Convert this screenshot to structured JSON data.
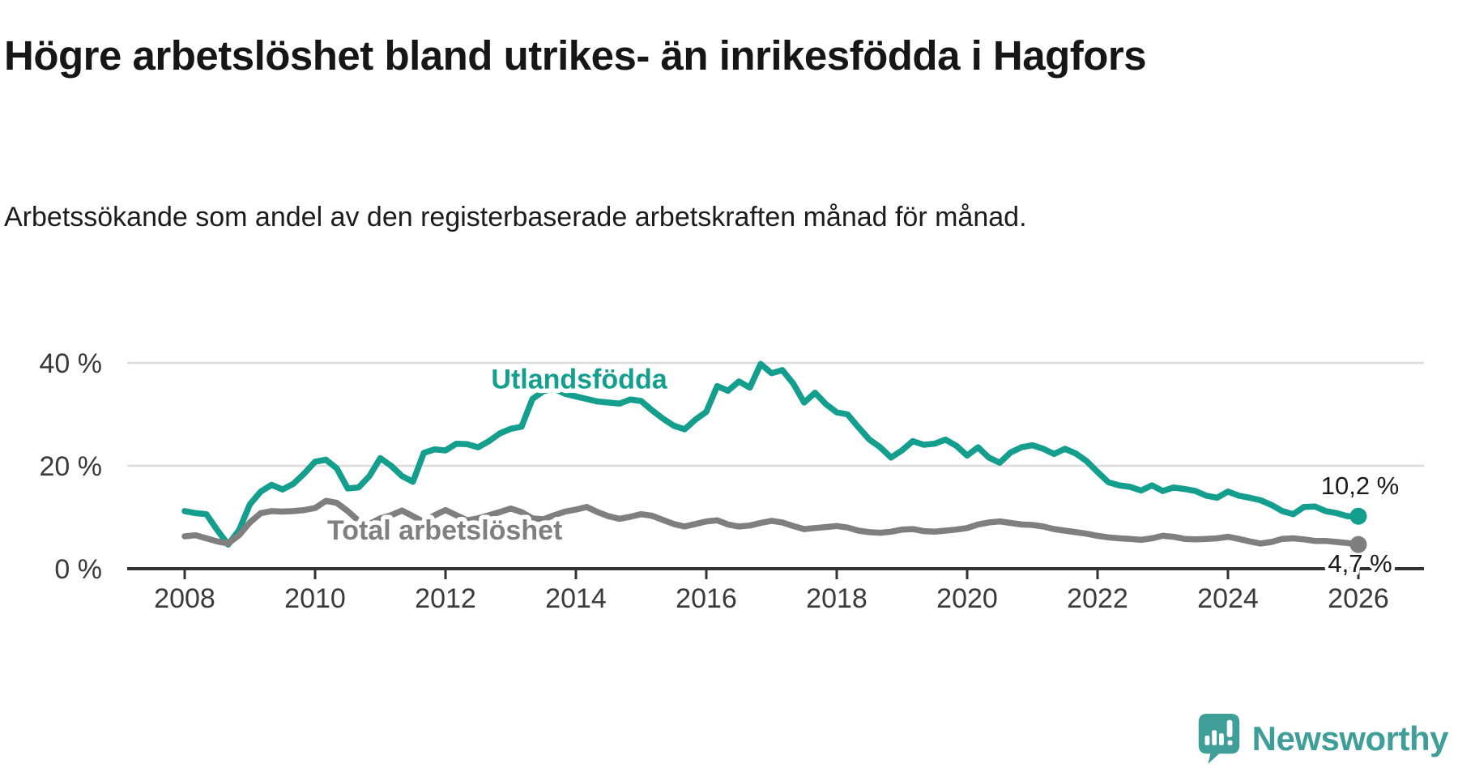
{
  "header": {
    "title": "Högre arbetslöshet bland utrikes- än inrikesfödda i Hagfors",
    "subtitle": "Arbetssökande som andel av den registerbaserade arbetskraften månad för månad."
  },
  "chart_data": {
    "type": "line",
    "title": "Högre arbetslöshet bland utrikes- än inrikesfödda i Hagfors",
    "subtitle": "Arbetssökande som andel av den registerbaserade arbetskraften månad för månad.",
    "unit": "%",
    "x_start": 2008,
    "x_step_years": 0.1666667,
    "xlim": [
      2007.1,
      2027
    ],
    "ylim": [
      0,
      45
    ],
    "grid": "horizontal",
    "legend_position": "inline-labels",
    "x_ticks": [
      2008,
      2010,
      2012,
      2014,
      2016,
      2018,
      2020,
      2022,
      2024,
      2026
    ],
    "y_ticks": [
      {
        "value": 0,
        "label": "0 %"
      },
      {
        "value": 20,
        "label": "20 %"
      },
      {
        "value": 40,
        "label": "40 %"
      }
    ],
    "colors": {
      "grid": "#dcdcdc",
      "axis": "#333333",
      "tick_text": "#3a3a3a",
      "end_label_text": "#1a1a1a"
    },
    "series": [
      {
        "id": "utlandsfodda",
        "name": "Utlandsfödda",
        "color": "#149e8e",
        "label": {
          "text": "Utlandsfödda",
          "x": 2014.05,
          "y": 36.9
        },
        "end_label": {
          "text": "10,2 %",
          "dx": 2,
          "dy": -27
        },
        "end_value": "10,2 %",
        "values": [
          11.2,
          10.8,
          10.6,
          7.5,
          4.7,
          7.5,
          12.5,
          15.0,
          16.3,
          15.4,
          16.5,
          18.5,
          20.8,
          21.2,
          19.5,
          15.6,
          15.8,
          18.0,
          21.5,
          20.0,
          18.0,
          16.9,
          22.5,
          23.2,
          23.0,
          24.3,
          24.2,
          23.6,
          24.8,
          26.3,
          27.2,
          27.6,
          33.0,
          34.5,
          35.0,
          34.0,
          33.5,
          33.0,
          32.5,
          32.3,
          32.1,
          32.9,
          32.6,
          30.8,
          29.2,
          27.8,
          27.1,
          29.0,
          30.5,
          35.5,
          34.6,
          36.4,
          35.2,
          39.8,
          38.0,
          38.6,
          36.0,
          32.3,
          34.2,
          32.0,
          30.4,
          30.0,
          27.5,
          25.1,
          23.6,
          21.6,
          23.0,
          24.8,
          24.1,
          24.3,
          25.1,
          23.9,
          22.0,
          23.6,
          21.6,
          20.6,
          22.6,
          23.6,
          24.0,
          23.3,
          22.3,
          23.3,
          22.4,
          20.9,
          18.8,
          16.8,
          16.2,
          15.9,
          15.2,
          16.2,
          15.1,
          15.8,
          15.5,
          15.1,
          14.2,
          13.8,
          15.0,
          14.2,
          13.8,
          13.3,
          12.4,
          11.2,
          10.6,
          12.0,
          12.1,
          11.2,
          10.8,
          10.2,
          10.2
        ]
      },
      {
        "id": "total",
        "name": "Total arbetslöshet",
        "color": "#7f7f7f",
        "label": {
          "text": "Total arbetslöshet",
          "x": 2011.99,
          "y": 7.56
        },
        "end_label": {
          "text": "4,7 %",
          "dx": 2,
          "dy": 34
        },
        "end_value": "4,7 %",
        "values": [
          6.3,
          6.5,
          5.9,
          5.3,
          4.9,
          6.5,
          9.0,
          10.8,
          11.2,
          11.1,
          11.2,
          11.4,
          11.8,
          13.2,
          12.8,
          11.2,
          9.3,
          8.7,
          9.8,
          10.4,
          11.3,
          10.2,
          9.1,
          10.4,
          11.4,
          10.4,
          9.4,
          9.8,
          10.4,
          11.0,
          11.7,
          11.0,
          9.8,
          9.6,
          10.4,
          11.1,
          11.5,
          12.0,
          11.0,
          10.2,
          9.7,
          10.1,
          10.6,
          10.3,
          9.5,
          8.7,
          8.2,
          8.7,
          9.2,
          9.4,
          8.6,
          8.2,
          8.4,
          8.9,
          9.3,
          9.0,
          8.3,
          7.7,
          7.9,
          8.1,
          8.3,
          8.0,
          7.4,
          7.1,
          7.0,
          7.2,
          7.6,
          7.7,
          7.3,
          7.2,
          7.4,
          7.6,
          7.9,
          8.6,
          9.0,
          9.2,
          8.9,
          8.6,
          8.5,
          8.2,
          7.7,
          7.4,
          7.1,
          6.8,
          6.4,
          6.1,
          5.9,
          5.8,
          5.6,
          5.9,
          6.4,
          6.2,
          5.8,
          5.7,
          5.8,
          5.9,
          6.2,
          5.8,
          5.3,
          4.9,
          5.2,
          5.8,
          5.9,
          5.7,
          5.4,
          5.4,
          5.2,
          5.0,
          4.7
        ]
      }
    ]
  },
  "footer": {
    "brand": "Newsworthy",
    "brand_color": "#3f9e98"
  }
}
